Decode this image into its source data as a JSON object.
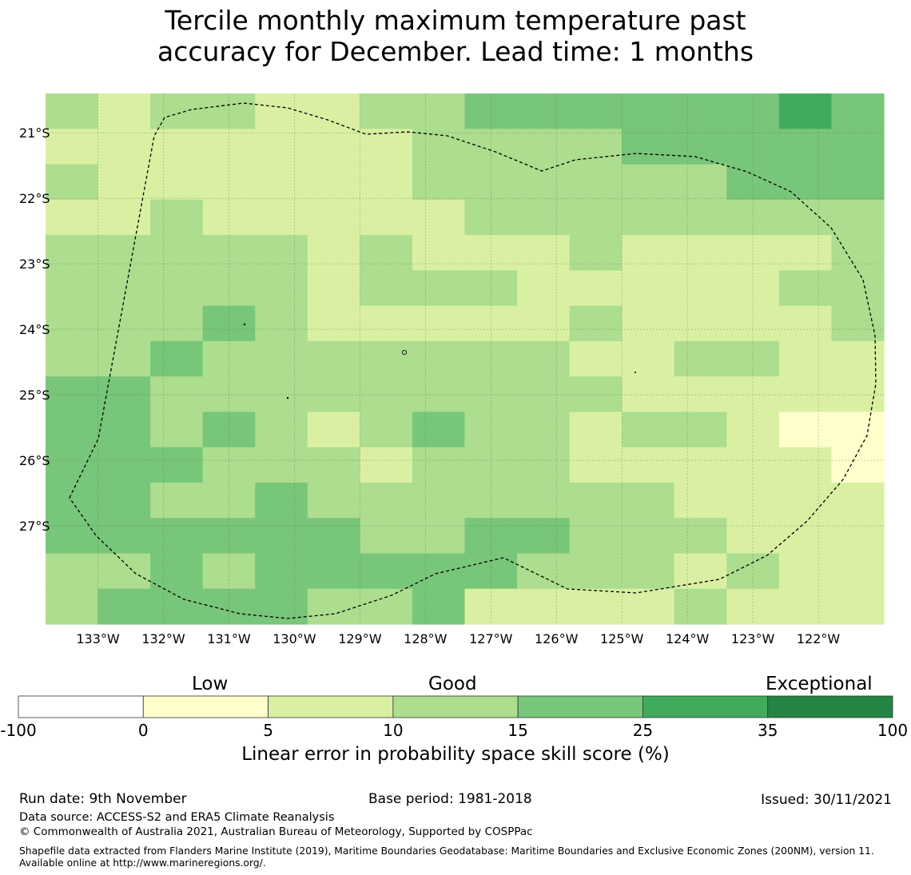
{
  "title_line1": "Tercile monthly maximum temperature past",
  "title_line2": "accuracy for December. Lead time: 1 months",
  "map": {
    "lat_labels": [
      "21°S",
      "22°S",
      "23°S",
      "24°S",
      "25°S",
      "26°S",
      "27°S"
    ],
    "lat_values": [
      -21,
      -22,
      -23,
      -24,
      -25,
      -26,
      -27
    ],
    "lon_labels": [
      "133°W",
      "132°W",
      "131°W",
      "130°W",
      "129°W",
      "128°W",
      "127°W",
      "126°W",
      "125°W",
      "124°W",
      "123°W",
      "122°W"
    ],
    "lon_values": [
      -133,
      -132,
      -131,
      -130,
      -129,
      -128,
      -127,
      -126,
      -125,
      -124,
      -123,
      -122
    ],
    "extent": {
      "lon_min": -133.8,
      "lon_max": -121.0,
      "lat_min": -28.5,
      "lat_max": -20.4
    },
    "grid_cols": 16,
    "grid_rows": 15,
    "class_colors": [
      "#ffffcc",
      "#d9f0a3",
      "#addd8e",
      "#78c679",
      "#41ab5d",
      "#238443"
    ],
    "cells": [
      [
        2,
        1,
        2,
        2,
        1,
        1,
        2,
        2,
        3,
        3,
        3,
        3,
        3,
        3,
        4,
        3
      ],
      [
        1,
        1,
        1,
        1,
        1,
        1,
        1,
        2,
        2,
        2,
        2,
        3,
        3,
        3,
        3,
        3
      ],
      [
        2,
        1,
        1,
        1,
        1,
        1,
        1,
        2,
        2,
        2,
        2,
        2,
        2,
        3,
        3,
        3
      ],
      [
        1,
        1,
        2,
        1,
        1,
        1,
        1,
        1,
        2,
        2,
        2,
        2,
        2,
        2,
        2,
        2
      ],
      [
        2,
        2,
        2,
        2,
        2,
        1,
        2,
        1,
        1,
        1,
        2,
        1,
        1,
        1,
        1,
        2
      ],
      [
        2,
        2,
        2,
        2,
        2,
        1,
        2,
        2,
        2,
        1,
        1,
        1,
        1,
        1,
        2,
        2
      ],
      [
        2,
        2,
        2,
        3,
        2,
        1,
        1,
        1,
        1,
        1,
        2,
        1,
        1,
        1,
        1,
        2
      ],
      [
        2,
        2,
        3,
        2,
        2,
        2,
        2,
        2,
        2,
        2,
        1,
        1,
        2,
        2,
        1,
        1
      ],
      [
        3,
        3,
        2,
        2,
        2,
        2,
        2,
        2,
        2,
        2,
        2,
        1,
        1,
        1,
        1,
        1
      ],
      [
        3,
        3,
        2,
        3,
        2,
        1,
        2,
        3,
        2,
        2,
        1,
        2,
        2,
        1,
        0,
        0
      ],
      [
        3,
        3,
        3,
        2,
        2,
        2,
        1,
        2,
        2,
        2,
        1,
        1,
        1,
        1,
        1,
        0
      ],
      [
        3,
        3,
        2,
        2,
        3,
        2,
        2,
        2,
        2,
        2,
        2,
        2,
        1,
        1,
        1,
        1
      ],
      [
        3,
        3,
        3,
        3,
        3,
        3,
        2,
        2,
        3,
        3,
        2,
        2,
        2,
        1,
        1,
        1
      ],
      [
        2,
        2,
        3,
        2,
        3,
        3,
        3,
        3,
        3,
        2,
        2,
        2,
        1,
        2,
        1,
        1
      ],
      [
        2,
        3,
        3,
        3,
        3,
        2,
        2,
        3,
        1,
        1,
        1,
        1,
        2,
        1,
        1,
        1
      ]
    ]
  },
  "colorbar": {
    "header_low": "Low",
    "header_good": "Good",
    "header_exceptional": "Exceptional",
    "ticks": [
      "-100",
      "0",
      "5",
      "10",
      "15",
      "25",
      "35",
      "100"
    ],
    "colors": [
      "#ffffff",
      "#ffffcc",
      "#d9f0a3",
      "#addd8e",
      "#78c679",
      "#41ab5d",
      "#238443"
    ],
    "label": "Linear error in probability space skill score (%)"
  },
  "footer": {
    "run_date": "Run date: 9th November",
    "base_period": "Base period: 1981-2018",
    "issued": "Issued: 30/11/2021",
    "data_source": "Data source: ACCESS-S2 and ERA5 Climate Reanalysis",
    "copyright": "© Commonwealth of Australia 2021, Australian Bureau of Meteorology, Supported by COSPPac",
    "shapefile": "Shapefile data extracted from Flanders Marine Institute (2019), Maritime Boundaries Geodatabase: Maritime Boundaries and Exclusive Economic Zones (200NM), version 11. Available online at http://www.marineregions.org/."
  }
}
